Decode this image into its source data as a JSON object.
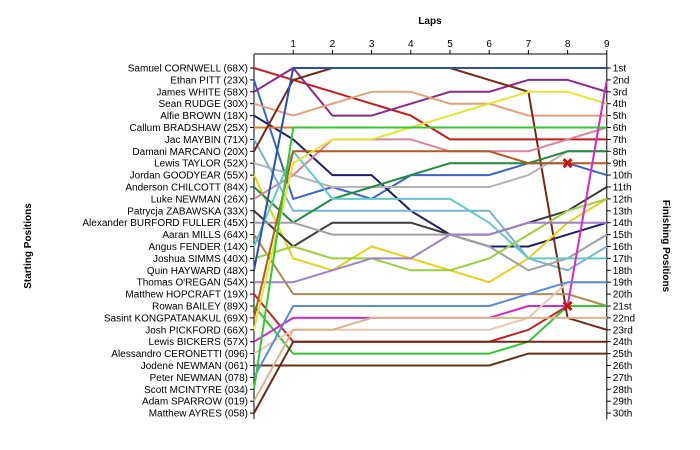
{
  "chart_data": {
    "type": "line",
    "title": "Laps",
    "ylabel_left": "Starting Positions",
    "ylabel_right": "Finishing Positions",
    "x": [
      0,
      1,
      2,
      3,
      4,
      5,
      6,
      7,
      8,
      9
    ],
    "x_tick_labels": [
      "1",
      "2",
      "3",
      "4",
      "5",
      "6",
      "7",
      "8",
      "9"
    ],
    "ylim": [
      1,
      30
    ],
    "y_inverted": true,
    "grid": false,
    "starting_positions": [
      "Samuel CORNWELL (68X)",
      "Ethan PITT (23X)",
      "James WHITE (58X)",
      "Sean RUDGE (30X)",
      "Alfie BROWN (18X)",
      "Callum BRADSHAW (25X)",
      "Jac MAYBIN (71X)",
      "Damani MARCANO (20X)",
      "Lewis TAYLOR (52X)",
      "Jordan GOODYEAR (55X)",
      "Anderson CHILCOTT (84X)",
      "Luke NEWMAN (26X)",
      "Patrycja ZABAWSKA (33X)",
      "Alexander BURFORD FULLER (45X)",
      "Aaran MILLS (64X)",
      "Angus FENDER (14X)",
      "Joshua SIMMS (40X)",
      "Quin HAYWARD (48X)",
      "Thomas O'REGAN (54X)",
      "Matthew HOPCRAFT (19X)",
      "Rowan BAILEY (89X)",
      "Sasint KONGPATANAKUL (69X)",
      "Josh PICKFORD (66X)",
      "Lewis BICKERS (57X)",
      "Alessandro CERONETTI (096)",
      "Jodene NEWMAN (061)",
      "Peter NEWMAN (078)",
      "Scott MCINTYRE (034)",
      "Adam SPARROW (019)",
      "Matthew AYRES (058)"
    ],
    "finishing_positions": [
      "1st",
      "2nd",
      "3rd",
      "4th",
      "5th",
      "6th",
      "7th",
      "8th",
      "9th",
      "10th",
      "11th",
      "12th",
      "13th",
      "14th",
      "15th",
      "16th",
      "17th",
      "18th",
      "19th",
      "20th",
      "21st",
      "22nd",
      "23rd",
      "24th",
      "25th",
      "26th",
      "27th",
      "28th",
      "29th",
      "30th"
    ],
    "series": [
      {
        "color": "#c81919",
        "values": [
          1,
          2,
          3,
          4,
          5,
          7,
          7,
          7,
          7,
          7
        ]
      },
      {
        "color": "#3c64c8",
        "values": [
          2,
          12,
          11,
          12,
          10,
          10,
          10,
          9,
          9,
          10
        ]
      },
      {
        "color": "#8c288c",
        "values": [
          3,
          1,
          5,
          5,
          4,
          3,
          3,
          2,
          2,
          3
        ]
      },
      {
        "color": "#e6a078",
        "values": [
          4,
          5,
          4,
          3,
          3,
          4,
          4,
          5,
          5,
          5
        ]
      },
      {
        "color": "#1e1e64",
        "values": [
          5,
          7,
          10,
          10,
          13,
          15,
          16,
          16,
          15,
          14
        ]
      },
      {
        "color": "#e08020",
        "values": [
          6,
          6,
          6,
          6,
          6,
          6,
          6,
          6,
          6,
          6
        ]
      },
      {
        "color": "#78b4d2",
        "values": [
          7,
          13,
          13,
          13,
          13,
          13,
          13,
          17,
          18,
          16
        ]
      },
      {
        "color": "#782814",
        "values": [
          8,
          2,
          1,
          1,
          1,
          1,
          2,
          3,
          22,
          23
        ]
      },
      {
        "color": "#b4b4b4",
        "values": [
          9,
          10,
          11,
          11,
          11,
          11,
          11,
          10,
          8,
          8
        ]
      },
      {
        "color": "#e6d214",
        "values": [
          10,
          17,
          18,
          16,
          17,
          18,
          19,
          17,
          14,
          12
        ]
      },
      {
        "color": "#1e8c3c",
        "values": [
          11,
          14,
          12,
          11,
          10,
          9,
          9,
          9,
          8,
          8
        ]
      },
      {
        "color": "#dc82a0",
        "values": [
          12,
          10,
          7,
          7,
          7,
          8,
          8,
          8,
          7,
          6
        ]
      },
      {
        "color": "#3c3c3c",
        "values": [
          13,
          16,
          14,
          14,
          14,
          15,
          15,
          14,
          13,
          11
        ]
      },
      {
        "color": "#a0a0a0",
        "values": [
          14,
          14,
          15,
          15,
          15,
          15,
          16,
          18,
          17,
          15
        ]
      },
      {
        "color": "#aa8c50",
        "values": [
          15,
          20,
          20,
          20,
          20,
          20,
          20,
          20,
          20,
          21
        ]
      },
      {
        "color": "#64c8c8",
        "values": [
          16,
          8,
          12,
          12,
          12,
          12,
          14,
          17,
          17,
          17
        ]
      },
      {
        "color": "#9ccd3c",
        "values": [
          17,
          16,
          17,
          17,
          18,
          18,
          17,
          15,
          13,
          12
        ]
      },
      {
        "color": "#2850b4",
        "values": [
          18,
          1,
          1,
          1,
          1,
          1,
          1,
          1,
          1,
          1
        ]
      },
      {
        "color": "#a080c8",
        "values": [
          19,
          19,
          18,
          17,
          17,
          15,
          15,
          14,
          14,
          14
        ]
      },
      {
        "color": "#c81e1e",
        "values": [
          20,
          24,
          24,
          24,
          24,
          24,
          24,
          23,
          21,
          21
        ]
      },
      {
        "color": "#32c832",
        "values": [
          21,
          25,
          25,
          25,
          25,
          25,
          25,
          24,
          21,
          21
        ]
      },
      {
        "color": "#b45a1e",
        "values": [
          22,
          8,
          8,
          8,
          8,
          8,
          8,
          9,
          9,
          9
        ]
      },
      {
        "color": "#e6e632",
        "values": [
          23,
          9,
          7,
          7,
          6,
          5,
          4,
          3,
          3,
          4
        ]
      },
      {
        "color": "#d228d2",
        "values": [
          24,
          22,
          22,
          22,
          22,
          22,
          22,
          21,
          21,
          2
        ]
      },
      {
        "color": "#e6c8b4",
        "values": [
          25,
          23,
          23,
          23,
          23,
          23,
          23,
          22,
          19,
          19
        ]
      },
      {
        "color": "#643214",
        "values": [
          26,
          26,
          26,
          26,
          26,
          26,
          26,
          25,
          25,
          25
        ]
      },
      {
        "color": "#5a8cdc",
        "values": [
          27,
          21,
          21,
          21,
          21,
          21,
          21,
          20,
          19,
          19
        ]
      },
      {
        "color": "#32c832",
        "values": [
          28,
          6,
          6,
          6,
          6,
          6,
          6,
          6,
          6,
          6
        ]
      },
      {
        "color": "#dcb48c",
        "values": [
          29,
          23,
          23,
          22,
          22,
          22,
          22,
          22,
          22,
          22
        ]
      },
      {
        "color": "#6e2814",
        "values": [
          30,
          24,
          24,
          24,
          24,
          24,
          24,
          24,
          24,
          24
        ]
      }
    ],
    "markers": [
      {
        "type": "cross",
        "color": "#cc1111",
        "x": 8,
        "y": 9
      },
      {
        "type": "cross",
        "color": "#cc1111",
        "x": 8,
        "y": 21
      }
    ]
  }
}
